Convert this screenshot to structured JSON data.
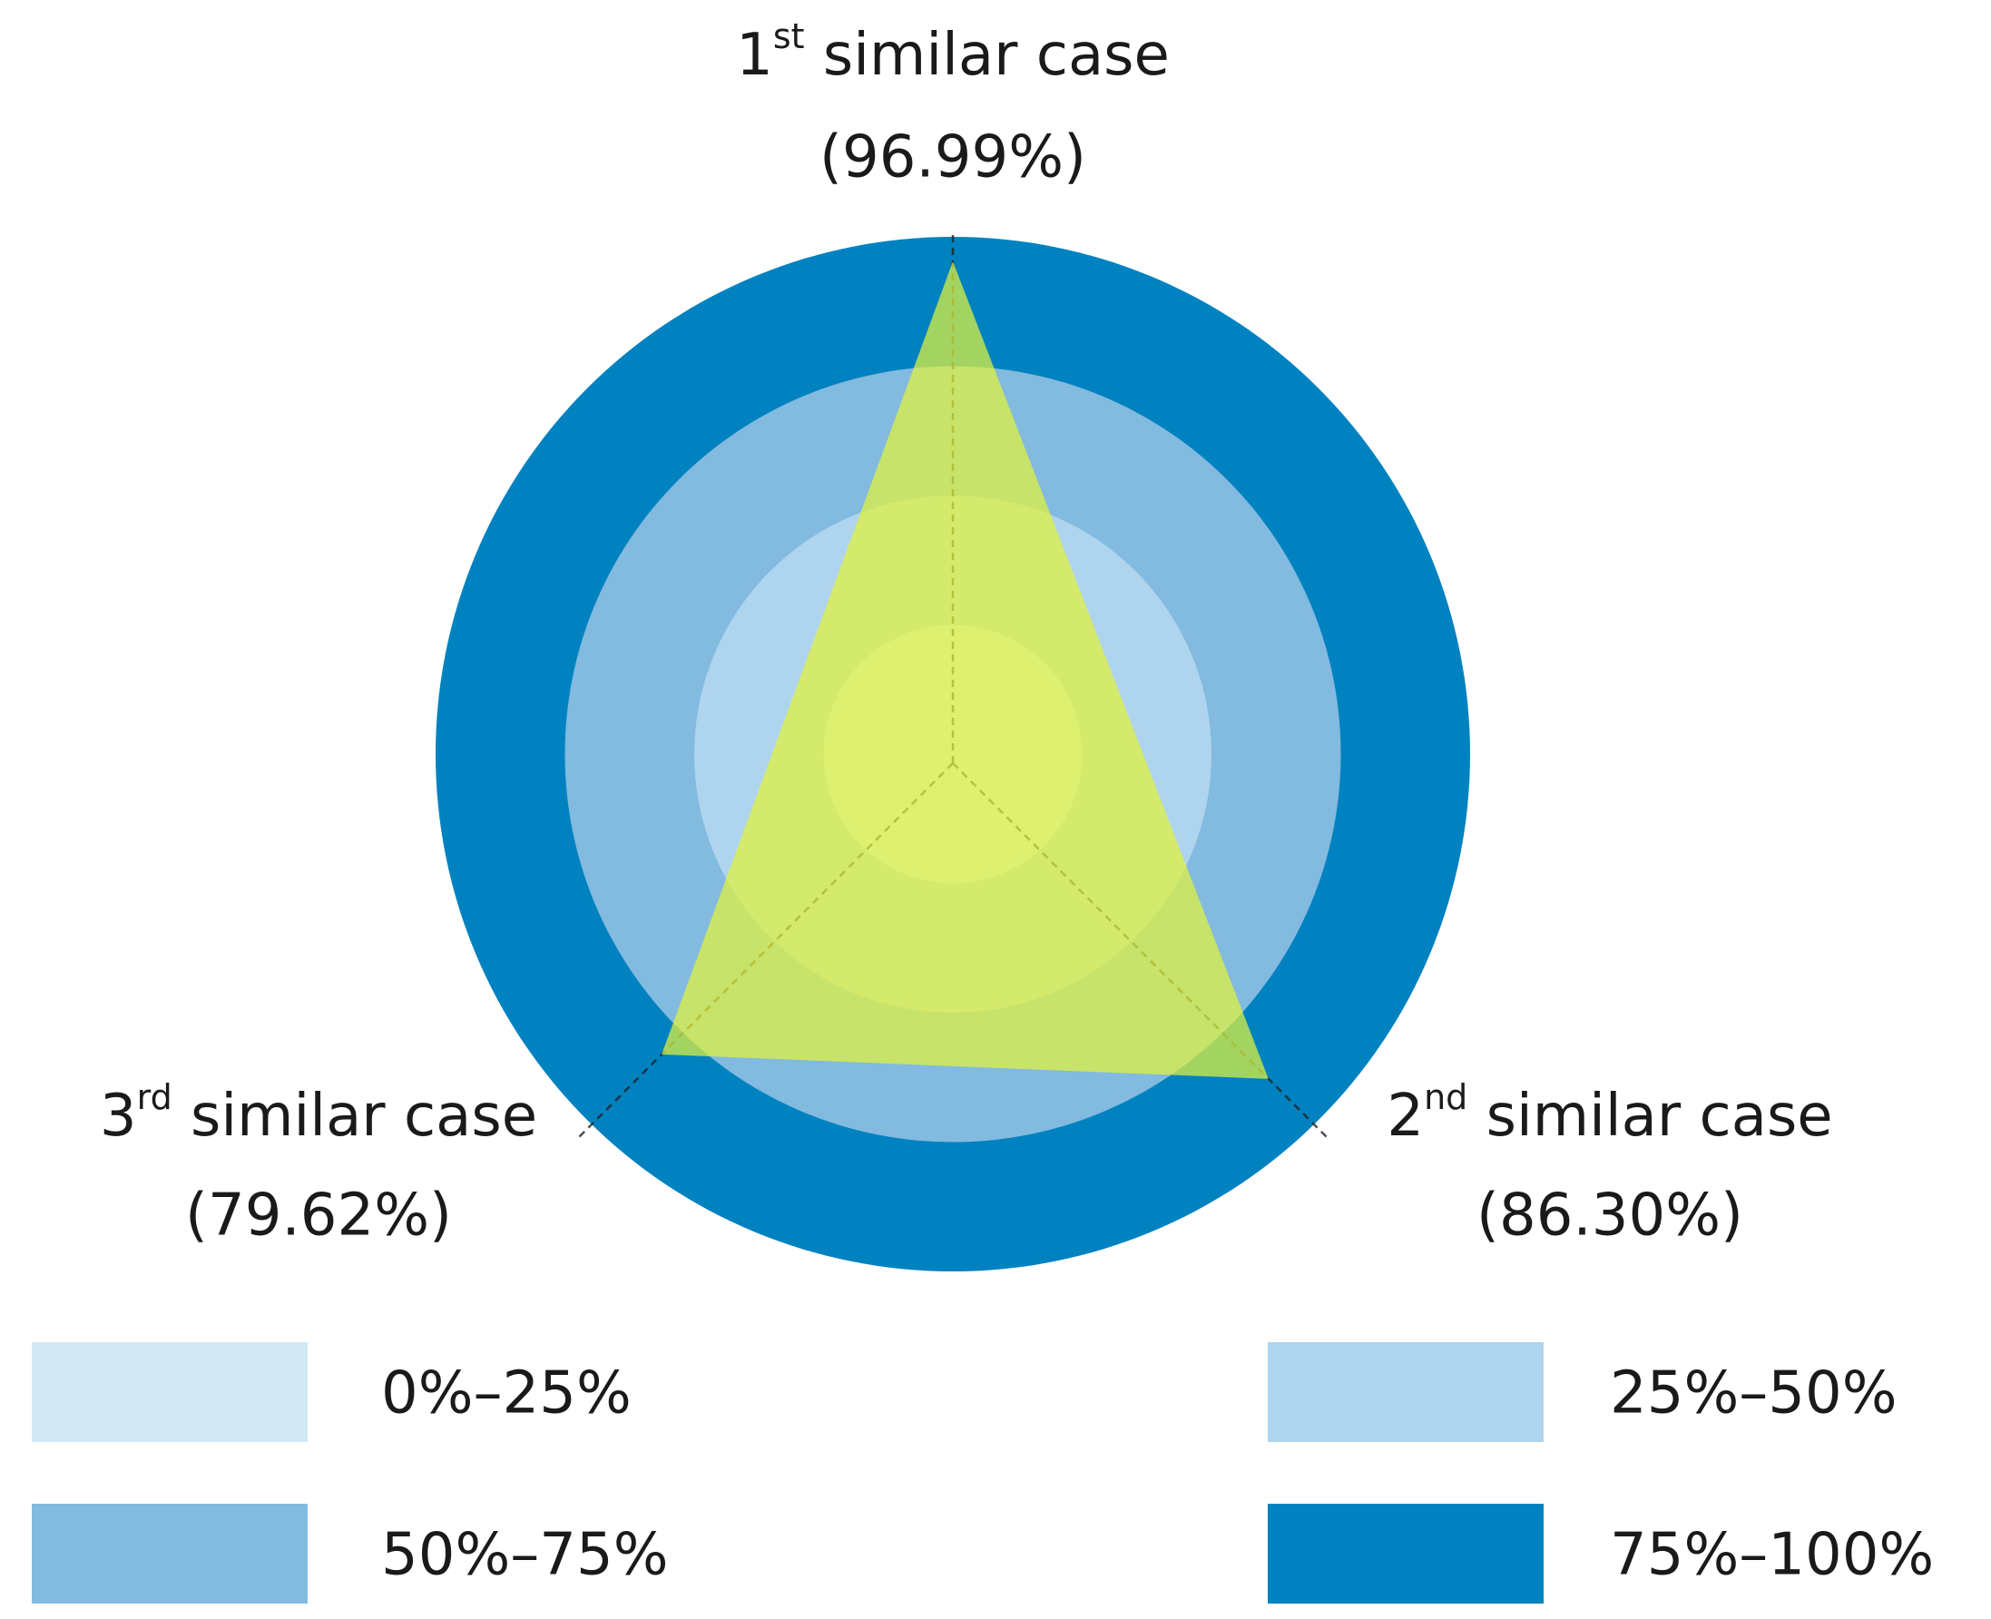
{
  "chart_data": {
    "type": "radar",
    "categories": [
      "1st similar case",
      "2nd similar case",
      "3rd similar case"
    ],
    "values": [
      96.99,
      86.3,
      79.62
    ],
    "value_labels": [
      "(96.99%)",
      "(86.30%)",
      "(79.62%)"
    ],
    "color": "#e2f23a",
    "rlim": [
      0,
      100
    ],
    "bands": [
      {
        "label": "0%–25%",
        "from": 0,
        "to": 25,
        "color": "#d4e9f6"
      },
      {
        "label": "25%–50%",
        "from": 25,
        "to": 50,
        "color": "#afd4ee"
      },
      {
        "label": "50%–75%",
        "from": 50,
        "to": 75,
        "color": "#82bae0"
      },
      {
        "label": "75%–100%",
        "from": 75,
        "to": 100,
        "color": "#0082c0"
      }
    ]
  }
}
